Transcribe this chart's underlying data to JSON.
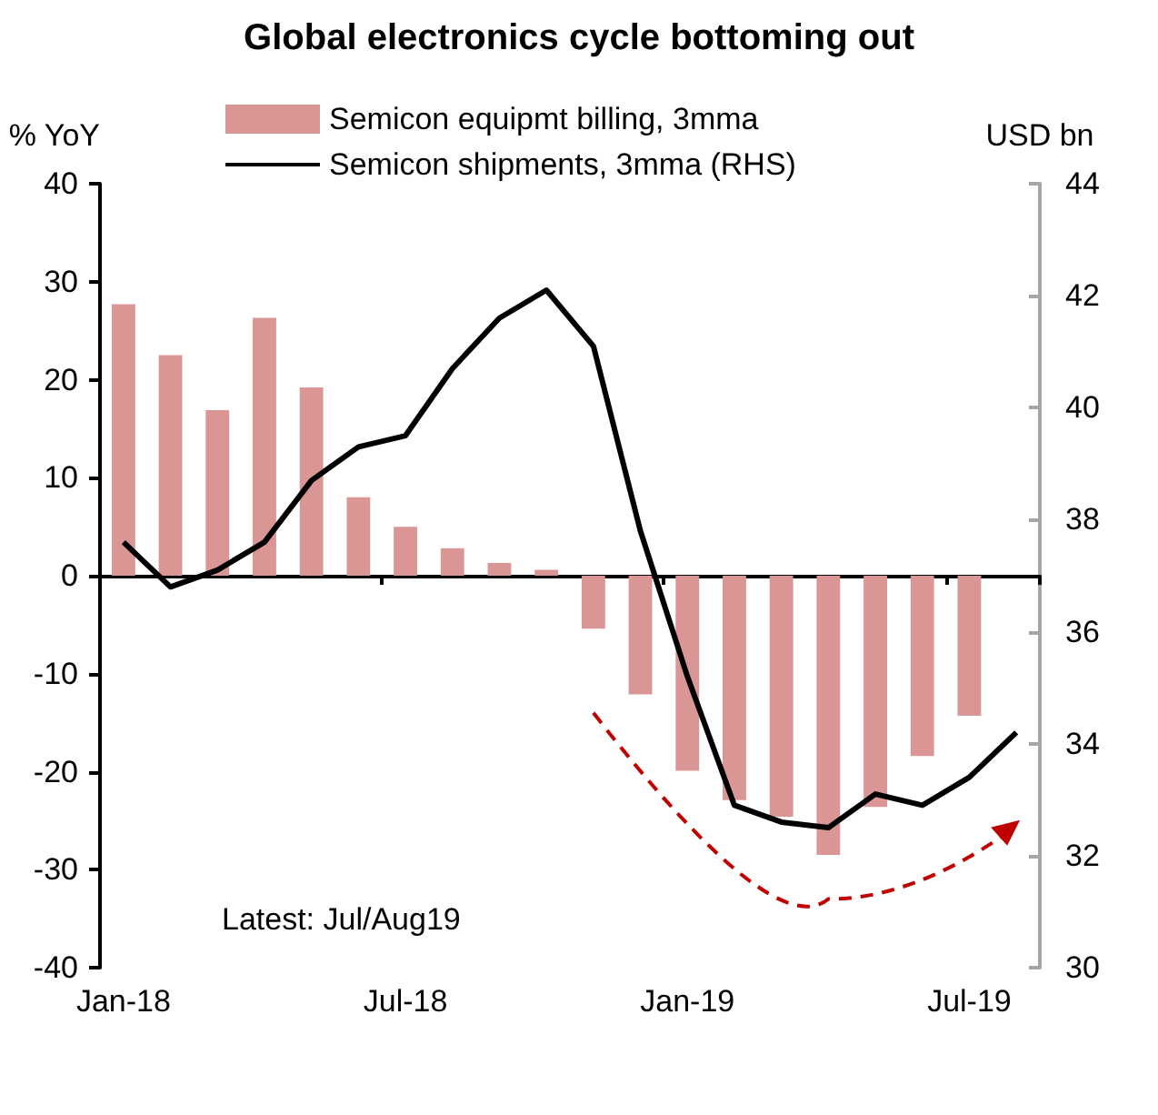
{
  "chart_data": {
    "type": "bar",
    "title": "Global electronics cycle bottoming out",
    "ylabel": "% YoY",
    "y2label": "USD bn",
    "categories": [
      "Jan-18",
      null,
      null,
      null,
      null,
      null,
      "Jul-18",
      null,
      null,
      null,
      null,
      null,
      "Jan-19",
      null,
      null,
      null,
      null,
      null,
      "Jul-19",
      null
    ],
    "series": [
      {
        "name": "Semicon equipmt billing, 3mma",
        "color": "#d99694",
        "values": [
          27.7,
          22.5,
          16.9,
          26.3,
          19.2,
          8.0,
          5.0,
          2.8,
          1.3,
          0.6,
          -5.4,
          -12.1,
          -19.9,
          -22.9,
          -24.6,
          -28.5,
          -23.6,
          -18.4,
          -14.3,
          null
        ]
      },
      {
        "name": "Semicon shipments, 3mma (RHS)",
        "type": "line",
        "axis": "y2",
        "color": "#000000",
        "values": [
          37.6,
          36.8,
          37.1,
          37.6,
          38.7,
          39.3,
          39.5,
          40.7,
          41.6,
          42.1,
          41.1,
          37.8,
          35.2,
          32.9,
          32.6,
          32.5,
          33.1,
          32.9,
          33.4,
          34.2
        ]
      }
    ],
    "ylim": [
      -40,
      40
    ],
    "yticks": [
      -40,
      -30,
      -20,
      -10,
      0,
      10,
      20,
      30,
      40
    ],
    "y2lim": [
      30,
      44
    ],
    "y2ticks": [
      30,
      32,
      34,
      36,
      38,
      40,
      42,
      44
    ],
    "annotations": [
      "Latest: Jul/Aug19"
    ],
    "legend": "top",
    "marker": "none",
    "line_style": "solid"
  }
}
